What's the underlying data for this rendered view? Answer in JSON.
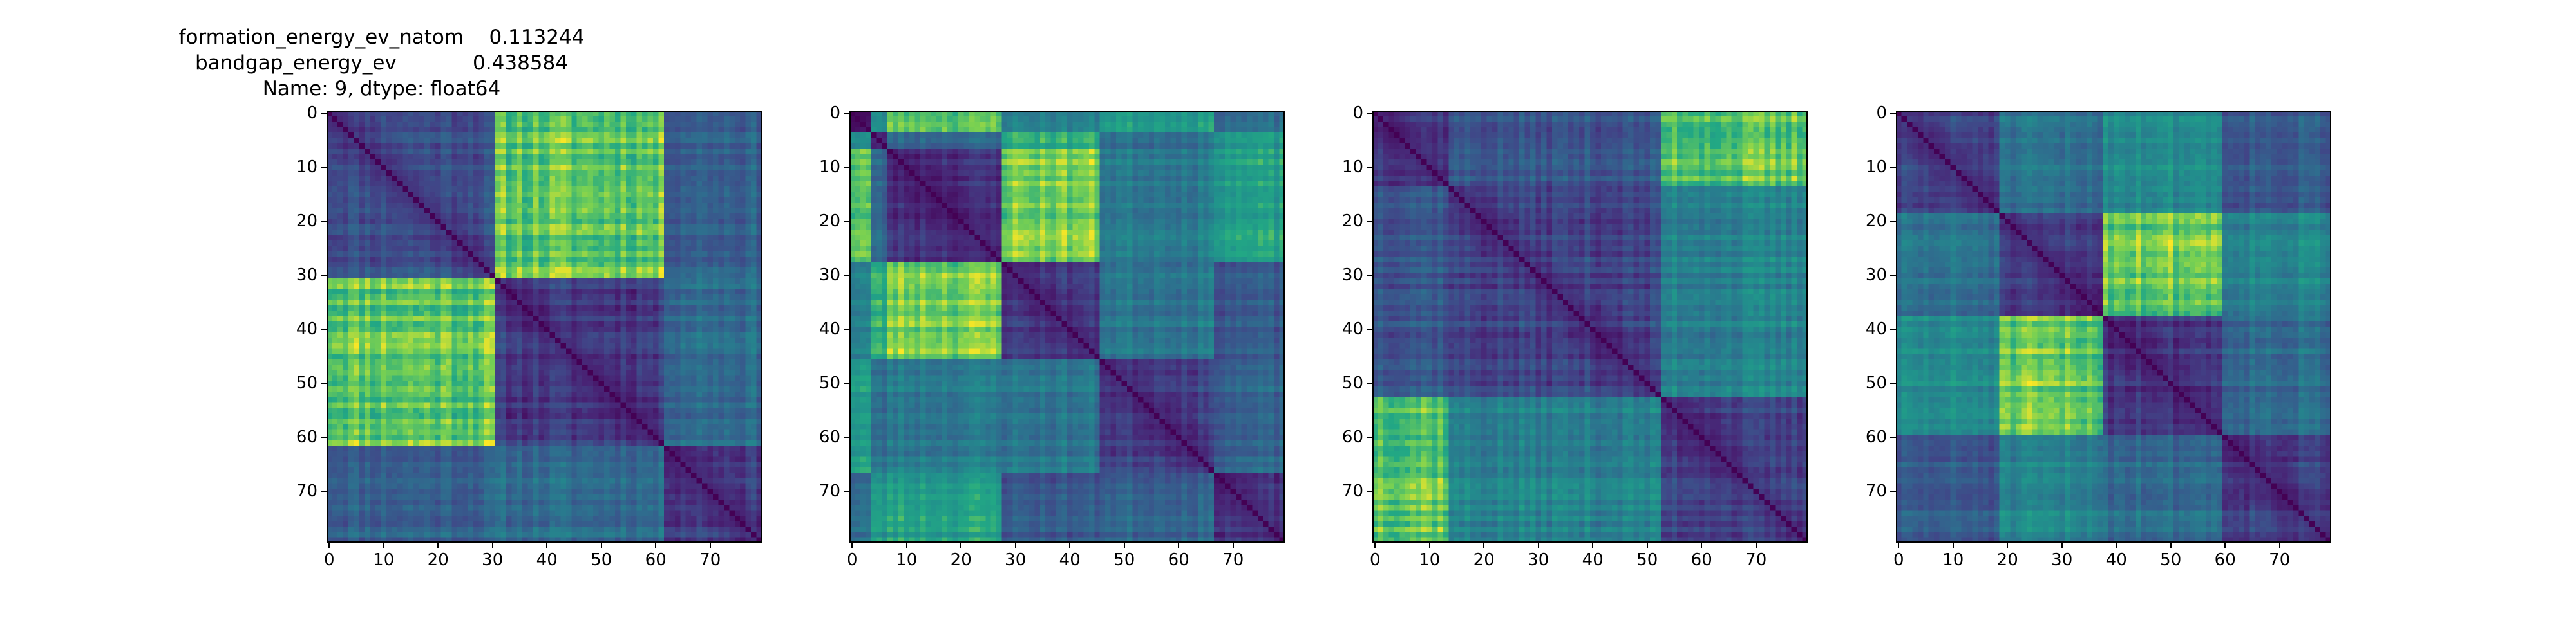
{
  "figure": {
    "title_lines": [
      "formation_energy_ev_natom    0.113244",
      "bandgap_energy_ev            0.438584",
      "Name: 9, dtype: float64"
    ]
  },
  "chart_data": [
    {
      "type": "heatmap",
      "title": "",
      "xlabel": "",
      "ylabel": "",
      "n": 80,
      "xlim": [
        0,
        79
      ],
      "ylim": [
        79,
        0
      ],
      "xticks": [
        0,
        10,
        20,
        30,
        40,
        50,
        60,
        70
      ],
      "yticks": [
        0,
        10,
        20,
        30,
        40,
        50,
        60,
        70
      ],
      "colormap": "viridis",
      "value_range": [
        0,
        1
      ],
      "groups": [
        0,
        31,
        62,
        80
      ],
      "group_distance": [
        [
          0.32,
          0.85,
          0.4
        ],
        [
          0.85,
          0.22,
          0.45
        ],
        [
          0.4,
          0.45,
          0.25
        ]
      ],
      "diagonal": 0,
      "noise": 0.07,
      "seed": 11
    },
    {
      "type": "heatmap",
      "title": "",
      "xlabel": "",
      "ylabel": "",
      "n": 80,
      "xlim": [
        0,
        79
      ],
      "ylim": [
        79,
        0
      ],
      "xticks": [
        0,
        10,
        20,
        30,
        40,
        50,
        60,
        70
      ],
      "yticks": [
        0,
        10,
        20,
        30,
        40,
        50,
        60,
        70
      ],
      "colormap": "viridis",
      "value_range": [
        0,
        1
      ],
      "groups": [
        0,
        4,
        7,
        28,
        46,
        67,
        80
      ],
      "group_distance": [
        [
          0.1,
          0.6,
          0.85,
          0.55,
          0.7,
          0.45
        ],
        [
          0.6,
          0.2,
          0.4,
          0.75,
          0.45,
          0.65
        ],
        [
          0.85,
          0.4,
          0.18,
          0.88,
          0.52,
          0.7
        ],
        [
          0.55,
          0.75,
          0.88,
          0.22,
          0.5,
          0.35
        ],
        [
          0.7,
          0.45,
          0.52,
          0.5,
          0.25,
          0.4
        ],
        [
          0.45,
          0.65,
          0.7,
          0.35,
          0.4,
          0.2
        ]
      ],
      "diagonal": 0,
      "noise": 0.06,
      "seed": 23
    },
    {
      "type": "heatmap",
      "title": "",
      "xlabel": "",
      "ylabel": "",
      "n": 80,
      "xlim": [
        0,
        79
      ],
      "ylim": [
        79,
        0
      ],
      "xticks": [
        0,
        10,
        20,
        30,
        40,
        50,
        60,
        70
      ],
      "yticks": [
        0,
        10,
        20,
        30,
        40,
        50,
        60,
        70
      ],
      "colormap": "viridis",
      "value_range": [
        0,
        1
      ],
      "groups": [
        0,
        14,
        53,
        80
      ],
      "group_distance": [
        [
          0.25,
          0.35,
          0.85
        ],
        [
          0.35,
          0.25,
          0.55
        ],
        [
          0.85,
          0.55,
          0.25
        ]
      ],
      "diagonal": 0,
      "noise": 0.07,
      "seed": 37
    },
    {
      "type": "heatmap",
      "title": "",
      "xlabel": "",
      "ylabel": "",
      "n": 80,
      "xlim": [
        0,
        79
      ],
      "ylim": [
        79,
        0
      ],
      "xticks": [
        0,
        10,
        20,
        30,
        40,
        50,
        60,
        70
      ],
      "yticks": [
        0,
        10,
        20,
        30,
        40,
        50,
        60,
        70
      ],
      "colormap": "viridis",
      "value_range": [
        0,
        1
      ],
      "groups": [
        0,
        19,
        38,
        60,
        80
      ],
      "group_distance": [
        [
          0.25,
          0.45,
          0.6,
          0.35
        ],
        [
          0.45,
          0.2,
          0.85,
          0.55
        ],
        [
          0.6,
          0.85,
          0.22,
          0.45
        ],
        [
          0.35,
          0.55,
          0.45,
          0.25
        ]
      ],
      "diagonal": 0,
      "noise": 0.07,
      "seed": 51
    }
  ]
}
